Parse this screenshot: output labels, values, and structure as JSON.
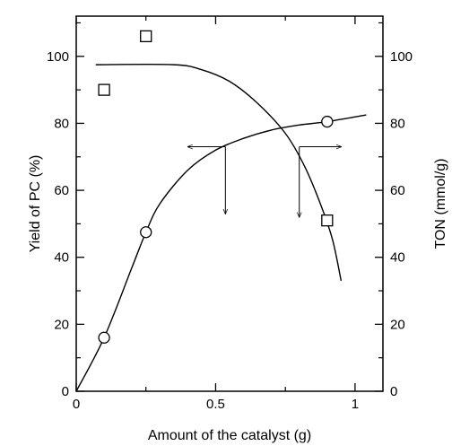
{
  "chart_data": {
    "type": "scatter",
    "xlabel": "Amount of the catalyst (g)",
    "ylabel_left": "Yield of PC (%)",
    "ylabel_right": "TON (mmol/g)",
    "xlim": [
      0,
      1.1
    ],
    "ylim_left": [
      0,
      112
    ],
    "ylim_right": [
      0,
      112
    ],
    "x_ticks": [
      0,
      0.5,
      1
    ],
    "x_tick_labels": [
      "0",
      "0.5",
      "1"
    ],
    "y_ticks_left": [
      0,
      20,
      40,
      60,
      80,
      100
    ],
    "y_tick_labels_left": [
      "0",
      "20",
      "40",
      "60",
      "80",
      "100"
    ],
    "y_ticks_right": [
      0,
      20,
      40,
      60,
      80,
      100
    ],
    "y_tick_labels_right": [
      "0",
      "20",
      "40",
      "60",
      "80",
      "100"
    ],
    "grid": false,
    "series": [
      {
        "marker": "circle",
        "axis": "left",
        "points": [
          [
            0.1,
            16
          ],
          [
            0.25,
            47.5
          ],
          [
            0.9,
            80.5
          ]
        ],
        "curve": [
          [
            0.0,
            0
          ],
          [
            0.1,
            16
          ],
          [
            0.2,
            37
          ],
          [
            0.25,
            47.5
          ],
          [
            0.3,
            56
          ],
          [
            0.4,
            66
          ],
          [
            0.5,
            72
          ],
          [
            0.6,
            75.5
          ],
          [
            0.7,
            78
          ],
          [
            0.8,
            79.5
          ],
          [
            0.9,
            80.5
          ],
          [
            1.04,
            82.5
          ]
        ]
      },
      {
        "marker": "square",
        "axis": "right",
        "points": [
          [
            0.1,
            90
          ],
          [
            0.25,
            106
          ],
          [
            0.9,
            51
          ]
        ],
        "curve": [
          [
            0.07,
            97.5
          ],
          [
            0.35,
            97.5
          ],
          [
            0.45,
            96
          ],
          [
            0.55,
            92.5
          ],
          [
            0.65,
            86
          ],
          [
            0.75,
            77
          ],
          [
            0.82,
            67
          ],
          [
            0.88,
            55
          ],
          [
            0.92,
            45
          ],
          [
            0.95,
            33
          ]
        ]
      }
    ],
    "annotations": [
      {
        "type": "arrow",
        "from": [
          0.535,
          73
        ],
        "to": [
          0.4,
          73
        ],
        "axis_hint": "left"
      },
      {
        "type": "arrow",
        "from": [
          0.535,
          73
        ],
        "to": [
          0.535,
          53
        ],
        "axis_hint": "left"
      },
      {
        "type": "arrow",
        "from": [
          0.8,
          73
        ],
        "to": [
          0.95,
          73
        ],
        "axis_hint": "right"
      },
      {
        "type": "arrow",
        "from": [
          0.8,
          73
        ],
        "to": [
          0.8,
          52
        ],
        "axis_hint": "right"
      }
    ]
  }
}
